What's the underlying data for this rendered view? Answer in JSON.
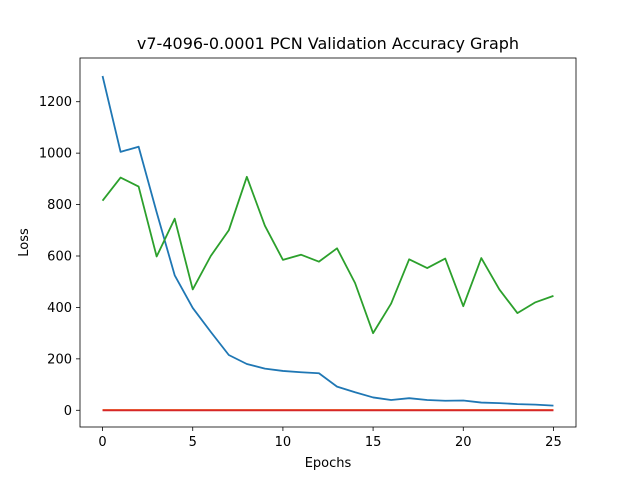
{
  "chart_data": {
    "type": "line",
    "title": "v7-4096-0.0001 PCN Validation Accuracy Graph",
    "xlabel": "Epochs",
    "ylabel": "Loss",
    "xlim": [
      -1.25,
      26.25
    ],
    "ylim": [
      -65,
      1370
    ],
    "xticks": [
      0,
      5,
      10,
      15,
      20,
      25
    ],
    "yticks": [
      0,
      200,
      400,
      600,
      800,
      1000,
      1200
    ],
    "grid": false,
    "legend": "none",
    "x": [
      0,
      1,
      2,
      3,
      4,
      5,
      6,
      7,
      8,
      9,
      10,
      11,
      12,
      13,
      14,
      15,
      16,
      17,
      18,
      19,
      20,
      21,
      22,
      23,
      24,
      25
    ],
    "series": [
      {
        "color": "#1f77b4",
        "values": [
          1300,
          1005,
          1025,
          770,
          525,
          398,
          305,
          215,
          180,
          162,
          153,
          148,
          144,
          92,
          70,
          50,
          40,
          47,
          40,
          37,
          38,
          30,
          28,
          24,
          22,
          18
        ]
      },
      {
        "color": "#2ca02c",
        "values": [
          815,
          905,
          870,
          598,
          745,
          470,
          600,
          700,
          908,
          718,
          585,
          605,
          578,
          630,
          495,
          300,
          415,
          587,
          553,
          590,
          405,
          592,
          470,
          378,
          420,
          445
        ]
      },
      {
        "color": "#ff7f0e",
        "values": [
          1,
          1,
          1,
          1,
          1,
          1,
          1,
          1,
          1,
          1,
          1,
          1,
          1,
          1,
          1,
          1,
          1,
          1,
          1,
          1,
          1,
          1,
          1,
          1,
          1,
          1
        ]
      },
      {
        "color": "#d62728",
        "values": [
          0,
          0,
          0,
          0,
          0,
          0,
          0,
          0,
          0,
          0,
          0,
          0,
          0,
          0,
          0,
          0,
          0,
          0,
          0,
          0,
          0,
          0,
          0,
          0,
          0,
          0
        ]
      }
    ]
  }
}
